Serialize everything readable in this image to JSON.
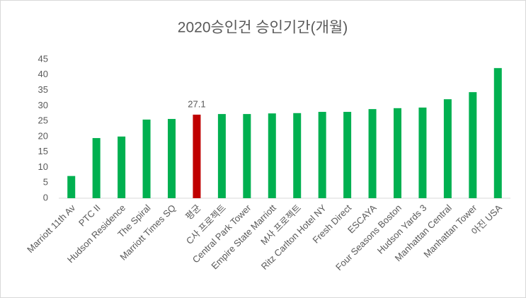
{
  "chart_data": {
    "type": "bar",
    "title": "2020승인건 승인기간(개월)",
    "categories": [
      "Marriott 11th Av",
      "PTC II",
      "Hudson Residence",
      "The Spiral",
      "Marriott Times SQ",
      "평균",
      "C사 프로젝트",
      "Central Park Tower",
      "Empire State Marriott",
      "M사 프로젝트",
      "Ritz Carlton Hotel NY",
      "Fresh Direct",
      "ESCAYA",
      "Four Seasons Boston",
      "Hudson Yards 3",
      "Manhattan Central",
      "Manhattan Tower",
      "아진 USA"
    ],
    "values": [
      7.2,
      19.5,
      20.0,
      25.5,
      25.7,
      27.1,
      27.3,
      27.3,
      27.5,
      27.6,
      28.0,
      28.0,
      28.9,
      29.2,
      29.4,
      32.1,
      34.4,
      42.2
    ],
    "value_labels": [
      null,
      null,
      null,
      null,
      null,
      "27.1",
      null,
      null,
      null,
      null,
      null,
      null,
      null,
      null,
      null,
      null,
      null,
      null
    ],
    "colors": [
      "#00b050",
      "#00b050",
      "#00b050",
      "#00b050",
      "#00b050",
      "#c00000",
      "#00b050",
      "#00b050",
      "#00b050",
      "#00b050",
      "#00b050",
      "#00b050",
      "#00b050",
      "#00b050",
      "#00b050",
      "#00b050",
      "#00b050",
      "#00b050"
    ],
    "ylim": [
      0,
      45
    ],
    "yticks": [
      0,
      5,
      10,
      15,
      20,
      25,
      30,
      35,
      40,
      45
    ],
    "grid": false
  }
}
